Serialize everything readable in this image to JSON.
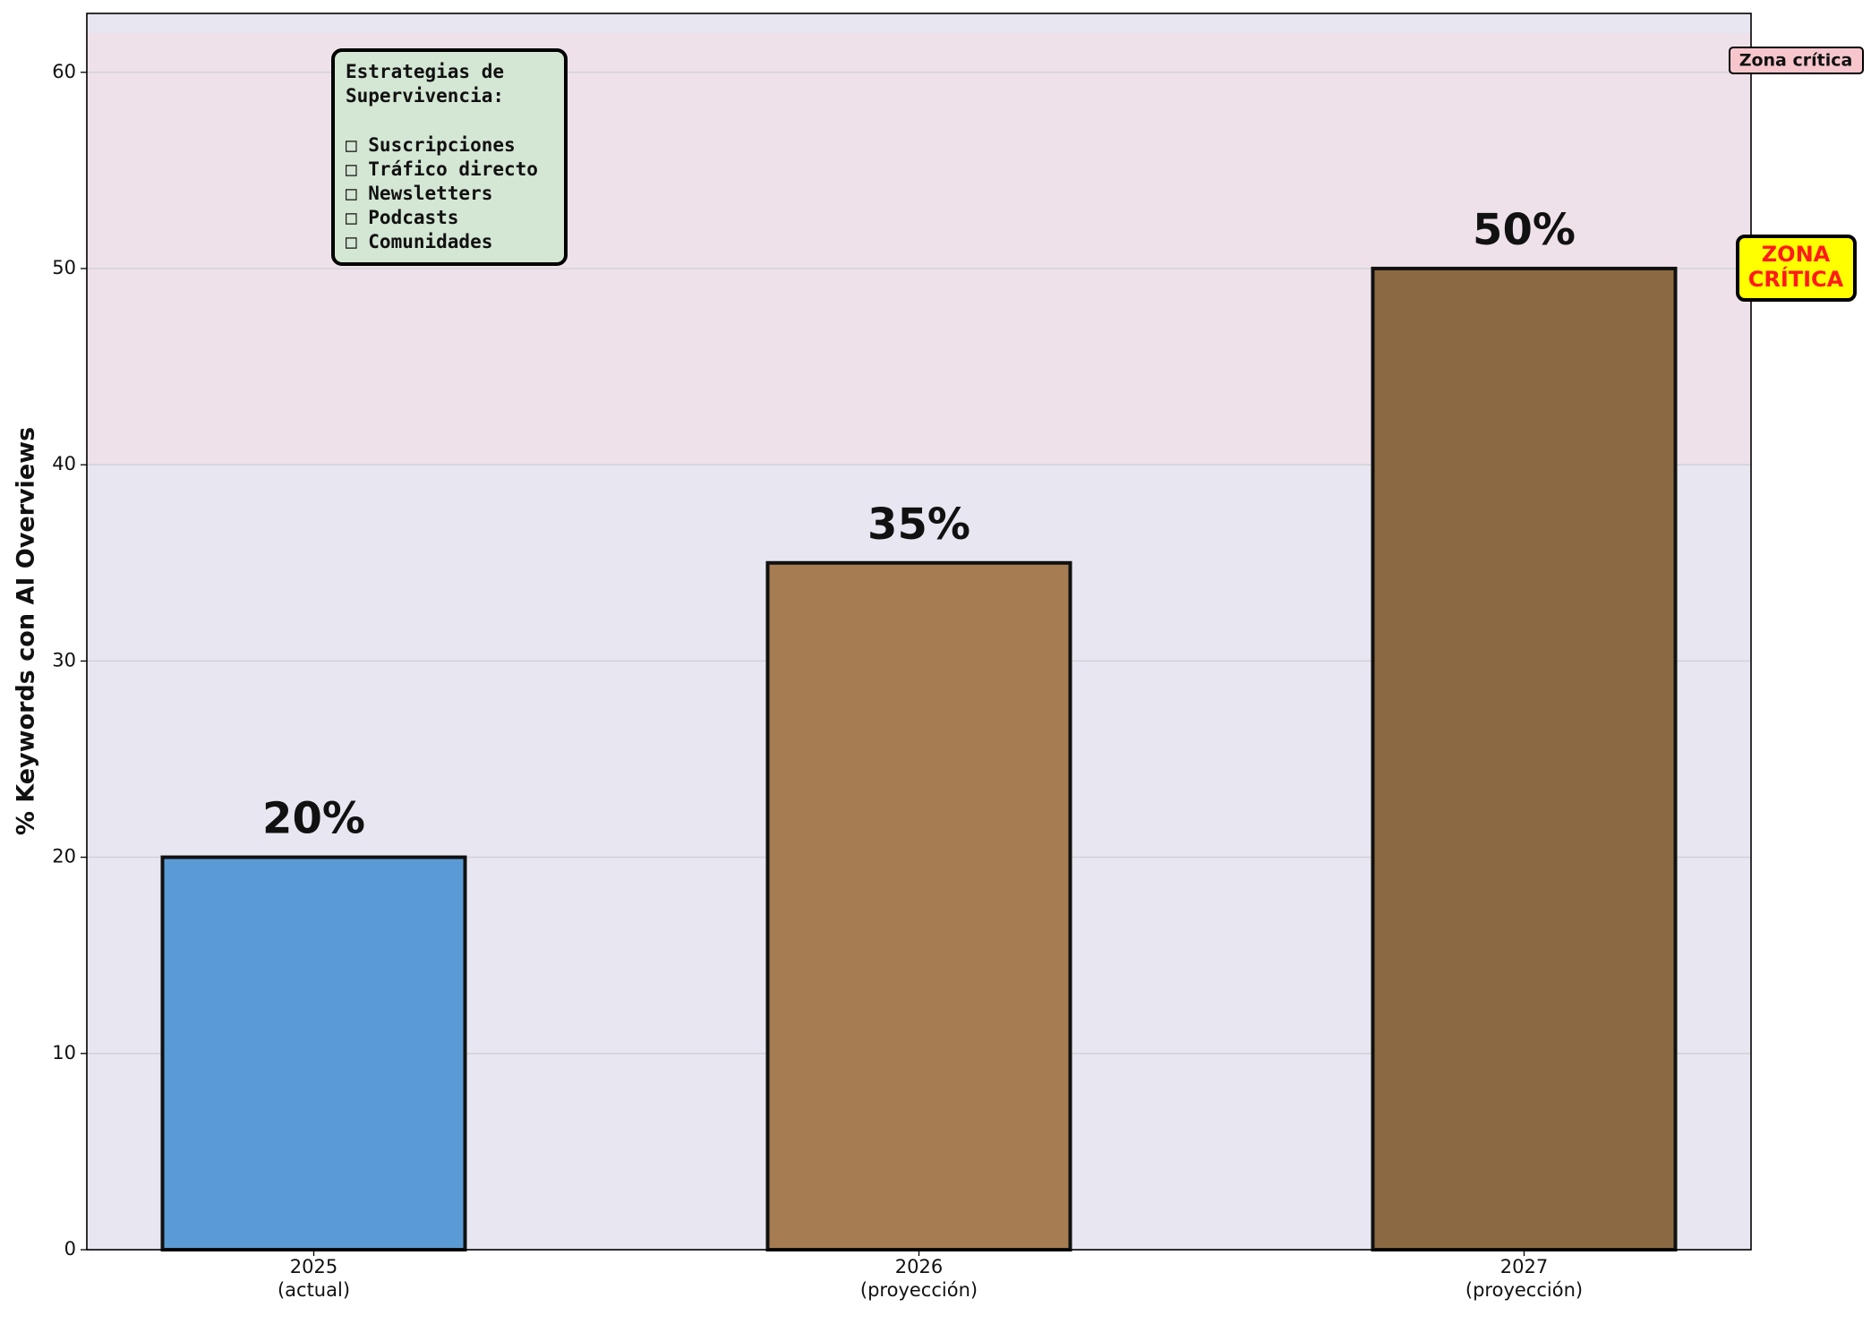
{
  "chart_data": {
    "type": "bar",
    "ylabel": "% Keywords con AI Overviews",
    "categories": [
      "2025\n(actual)",
      "2026\n(proyección)",
      "2027\n(proyección)"
    ],
    "values": [
      20,
      35,
      50
    ],
    "value_labels": [
      "20%",
      "35%",
      "50%"
    ],
    "colors": [
      "#5b9bd5",
      "#a67c52",
      "#8b6a43"
    ],
    "ylim": [
      0,
      63
    ],
    "yticks": [
      0,
      10,
      20,
      30,
      40,
      50,
      60
    ],
    "grid": true,
    "critical_zone": [
      40,
      62
    ],
    "zone_label": "Zona crítica",
    "zone_badge": "ZONA\nCRÍTICA",
    "strategy_box": {
      "title": "Estrategias de\nSupervivencia:",
      "items": [
        "□ Suscripciones",
        "□ Tráfico directo",
        "□ Newsletters",
        "□ Podcasts",
        "□ Comunidades"
      ]
    }
  }
}
